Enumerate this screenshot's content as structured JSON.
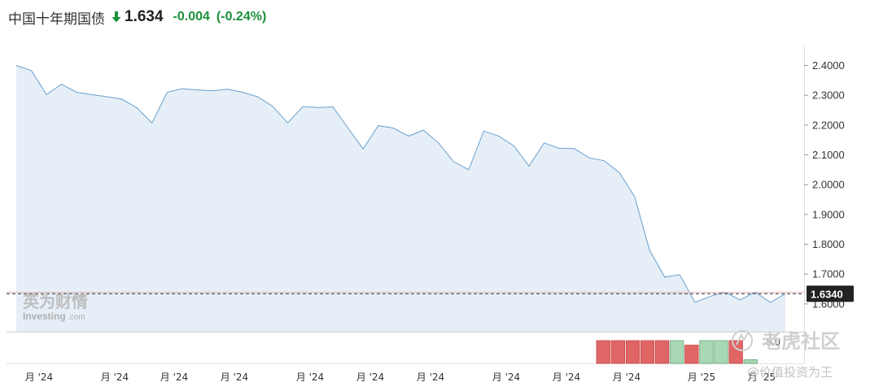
{
  "header": {
    "title": "中国十年期国债",
    "price": "1.634",
    "change": "-0.004",
    "change_pct": "(-0.24%)",
    "direction": "down",
    "change_color": "#1b8f3c"
  },
  "colors": {
    "line": "#6a9fcf",
    "area": "#e6eff7",
    "volume_up": "#e06666",
    "volume_down": "#a8d8b4",
    "current_line": "#c0392b"
  },
  "watermarks": {
    "investing_cn": "英为财情",
    "investing_en": "Investing",
    "investing_suffix": ".com",
    "tiger": "老虎社区",
    "author": "@价值投资为王"
  },
  "chart_data": {
    "type": "area",
    "title": "中国十年期国债",
    "y": [
      2.4,
      2.383,
      2.302,
      2.337,
      2.31,
      2.302,
      2.295,
      2.287,
      2.258,
      2.207,
      2.31,
      2.322,
      2.318,
      2.315,
      2.32,
      2.31,
      2.295,
      2.263,
      2.207,
      2.262,
      2.259,
      2.261,
      2.19,
      2.12,
      2.198,
      2.19,
      2.163,
      2.183,
      2.14,
      2.077,
      2.05,
      2.18,
      2.163,
      2.13,
      2.062,
      2.14,
      2.122,
      2.121,
      2.09,
      2.08,
      2.04,
      1.96,
      1.78,
      1.69,
      1.698,
      1.605,
      1.625,
      1.64,
      1.613,
      1.64,
      1.605,
      1.634
    ],
    "ylim": [
      1.55,
      2.45
    ],
    "yticks": [
      "2.4000",
      "2.3000",
      "2.2000",
      "2.1000",
      "2.0000",
      "1.9000",
      "1.8000",
      "1.7000",
      "1.6000"
    ],
    "current_value": "1.6340",
    "x_tick_labels": [
      "月 '24",
      "月 '24",
      "月 '24",
      "月 '24",
      "月 '24",
      "月 '24",
      "月 '24",
      "月 '24",
      "月 '24",
      "月 '24",
      "月 '25",
      "月 '25"
    ],
    "volume": {
      "axis_label": "5.0",
      "bars": [
        {
          "value": 5.0,
          "direction": "up"
        },
        {
          "value": 5.0,
          "direction": "up"
        },
        {
          "value": 5.0,
          "direction": "up"
        },
        {
          "value": 5.0,
          "direction": "up"
        },
        {
          "value": 5.0,
          "direction": "up"
        },
        {
          "value": 5.0,
          "direction": "down"
        },
        {
          "value": 4.0,
          "direction": "up"
        },
        {
          "value": 5.0,
          "direction": "down"
        },
        {
          "value": 5.0,
          "direction": "down"
        },
        {
          "value": 5.0,
          "direction": "up"
        },
        {
          "value": 0.8,
          "direction": "down"
        }
      ]
    },
    "grid": false
  }
}
